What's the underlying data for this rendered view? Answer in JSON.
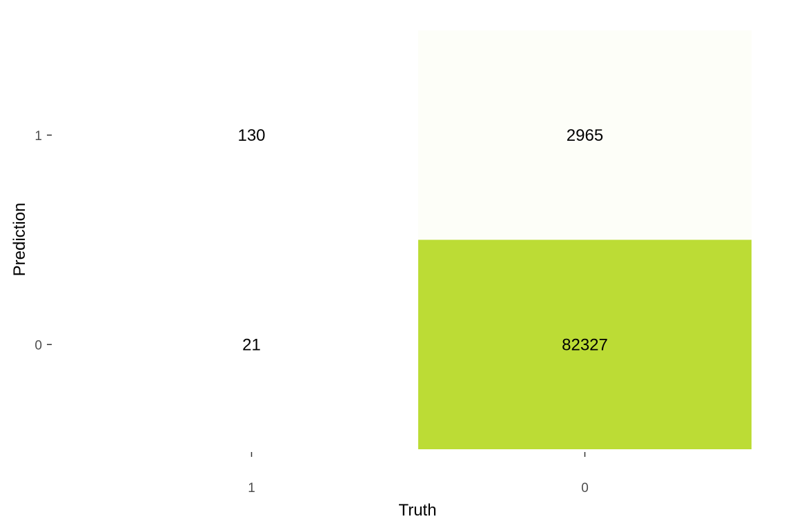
{
  "chart_data": {
    "type": "heatmap",
    "title": "",
    "xlabel": "Truth",
    "ylabel": "Prediction",
    "x_categories": [
      "1",
      "0"
    ],
    "y_categories": [
      "0",
      "1"
    ],
    "cells": [
      {
        "truth": "1",
        "prediction": "1",
        "value": 130
      },
      {
        "truth": "0",
        "prediction": "1",
        "value": 2965
      },
      {
        "truth": "1",
        "prediction": "0",
        "value": 21
      },
      {
        "truth": "0",
        "prediction": "0",
        "value": 82327
      }
    ],
    "color_low": "#ffffff",
    "color_high": "#bcdc35",
    "grid": false,
    "legend": "none"
  }
}
